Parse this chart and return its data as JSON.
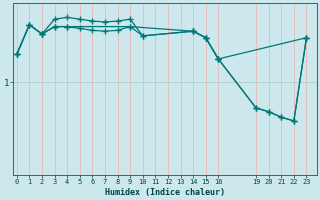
{
  "background_color": "#cce8ec",
  "line_color": "#007878",
  "xlabel": "Humidex (Indice chaleur)",
  "xtick_pos": [
    0,
    1,
    2,
    3,
    4,
    5,
    6,
    7,
    8,
    9,
    10,
    11,
    12,
    13,
    14,
    15,
    16,
    19,
    20,
    21,
    22,
    23
  ],
  "xtick_labels": [
    "0",
    "1",
    "2",
    "3",
    "4",
    "5",
    "6",
    "7",
    "8",
    "9",
    "10",
    "11",
    "12",
    "13",
    "14",
    "15",
    "16",
    "19",
    "20",
    "21",
    "22",
    "23"
  ],
  "xlim": [
    -0.3,
    23.8
  ],
  "ylim": [
    0.0,
    1.85
  ],
  "ytick_pos": [
    1.0
  ],
  "ytick_labels": [
    "1"
  ],
  "vgrid_color": "#e8b8b8",
  "hgrid_color": "#b0cccc",
  "line1_x": [
    0,
    1,
    2,
    3,
    4,
    5,
    6,
    7,
    8,
    9,
    10,
    14,
    15,
    16,
    23
  ],
  "line1_y": [
    1.3,
    1.62,
    1.52,
    1.68,
    1.7,
    1.68,
    1.66,
    1.65,
    1.66,
    1.68,
    1.5,
    1.55,
    1.48,
    1.25,
    1.48
  ],
  "line2_x": [
    0,
    1,
    2,
    3,
    4,
    5,
    6,
    7,
    8,
    9,
    10,
    14,
    15,
    16,
    19,
    20,
    21,
    22,
    23
  ],
  "line2_y": [
    1.3,
    1.62,
    1.52,
    1.6,
    1.6,
    1.58,
    1.56,
    1.55,
    1.56,
    1.6,
    1.5,
    1.55,
    1.48,
    1.25,
    0.72,
    0.68,
    0.62,
    0.58,
    1.48
  ],
  "line3_x": [
    0,
    1,
    2,
    3,
    4,
    9,
    14,
    15,
    16,
    19,
    20,
    21,
    22,
    23
  ],
  "line3_y": [
    1.3,
    1.62,
    1.52,
    1.6,
    1.6,
    1.6,
    1.55,
    1.48,
    1.25,
    0.72,
    0.68,
    0.62,
    0.58,
    1.48
  ]
}
